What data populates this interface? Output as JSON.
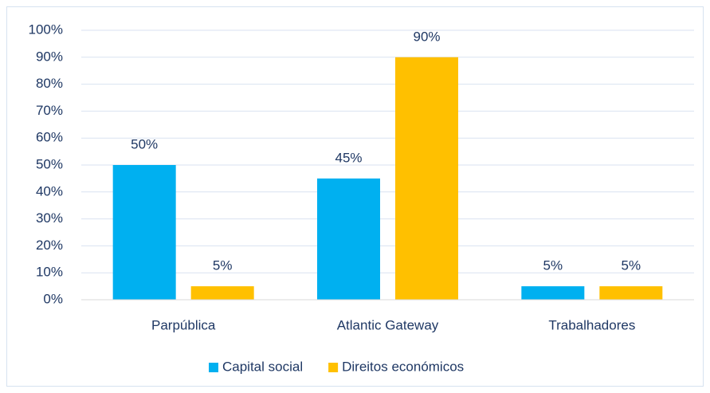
{
  "chart_data": {
    "type": "bar",
    "categories": [
      "Parpública",
      "Atlantic Gateway",
      "Trabalhadores"
    ],
    "series": [
      {
        "name": "Capital social",
        "color": "#00b0f0",
        "values": [
          50,
          45,
          5
        ],
        "value_labels": [
          "50%",
          "45%",
          "5%"
        ]
      },
      {
        "name": "Direitos económicos",
        "color": "#ffc000",
        "values": [
          5,
          90,
          5
        ],
        "value_labels": [
          "5%",
          "90%",
          "5%"
        ]
      }
    ],
    "ylim": [
      0,
      100
    ],
    "yticks": [
      {
        "value": 0,
        "label": "0%"
      },
      {
        "value": 10,
        "label": "10%"
      },
      {
        "value": 20,
        "label": "20%"
      },
      {
        "value": 30,
        "label": "30%"
      },
      {
        "value": 40,
        "label": "40%"
      },
      {
        "value": 50,
        "label": "50%"
      },
      {
        "value": 60,
        "label": "60%"
      },
      {
        "value": 70,
        "label": "70%"
      },
      {
        "value": 80,
        "label": "80%"
      },
      {
        "value": 90,
        "label": "90%"
      },
      {
        "value": 100,
        "label": "100%"
      }
    ],
    "grid": true,
    "legend": "bottom"
  }
}
